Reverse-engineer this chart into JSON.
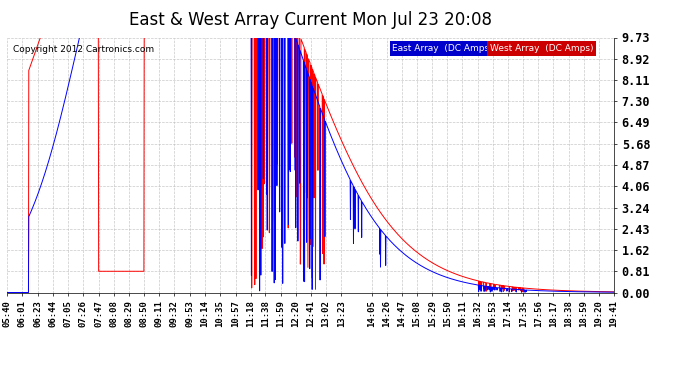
{
  "title": "East & West Array Current Mon Jul 23 20:08",
  "copyright": "Copyright 2012 Cartronics.com",
  "legend_east": "East Array  (DC Amps)",
  "legend_west": "West Array  (DC Amps)",
  "east_color": "#0000FF",
  "west_color": "#FF0000",
  "bg_color": "#FFFFFF",
  "plot_bg_color": "#FFFFFF",
  "grid_color": "#BBBBBB",
  "yticks": [
    0.0,
    0.81,
    1.62,
    2.43,
    3.24,
    4.06,
    4.87,
    5.68,
    6.49,
    7.3,
    8.11,
    8.92,
    9.73
  ],
  "ylim": [
    0.0,
    9.73
  ],
  "xlabel_fontsize": 6.5,
  "ylabel_fontsize": 8.5,
  "title_fontsize": 12
}
